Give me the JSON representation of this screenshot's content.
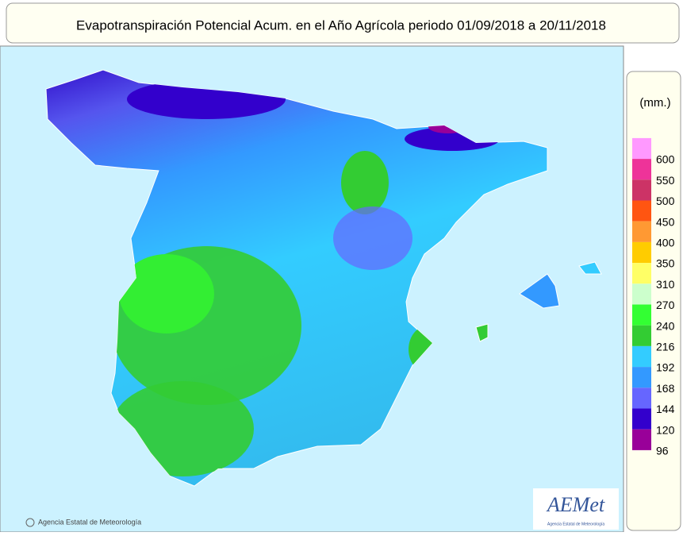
{
  "header": {
    "title": "Evapotranspiración Potencial Acum. en el Año Agrícola  periodo 01/09/2018 a 20/11/2018"
  },
  "legend": {
    "unit": "(mm.)",
    "items": [
      {
        "value": 600,
        "color": "#ff99ff"
      },
      {
        "value": 550,
        "color": "#ee3399"
      },
      {
        "value": 500,
        "color": "#cc3366"
      },
      {
        "value": 450,
        "color": "#ff5511"
      },
      {
        "value": 400,
        "color": "#ff9933"
      },
      {
        "value": 350,
        "color": "#ffcc00"
      },
      {
        "value": 310,
        "color": "#ffff66"
      },
      {
        "value": 270,
        "color": "#ccffcc"
      },
      {
        "value": 240,
        "color": "#33ff33"
      },
      {
        "value": 216,
        "color": "#33cc33"
      },
      {
        "value": 192,
        "color": "#33ccff"
      },
      {
        "value": 168,
        "color": "#3399ff"
      },
      {
        "value": 144,
        "color": "#6666ff"
      },
      {
        "value": 120,
        "color": "#3300cc"
      },
      {
        "value": 96,
        "color": "#990099"
      }
    ]
  },
  "footer": {
    "copyright": "Agencia Estatal de Meteorología",
    "logo": "AEMet",
    "logo_caption": "Agencia Estatal de Meteorología"
  }
}
